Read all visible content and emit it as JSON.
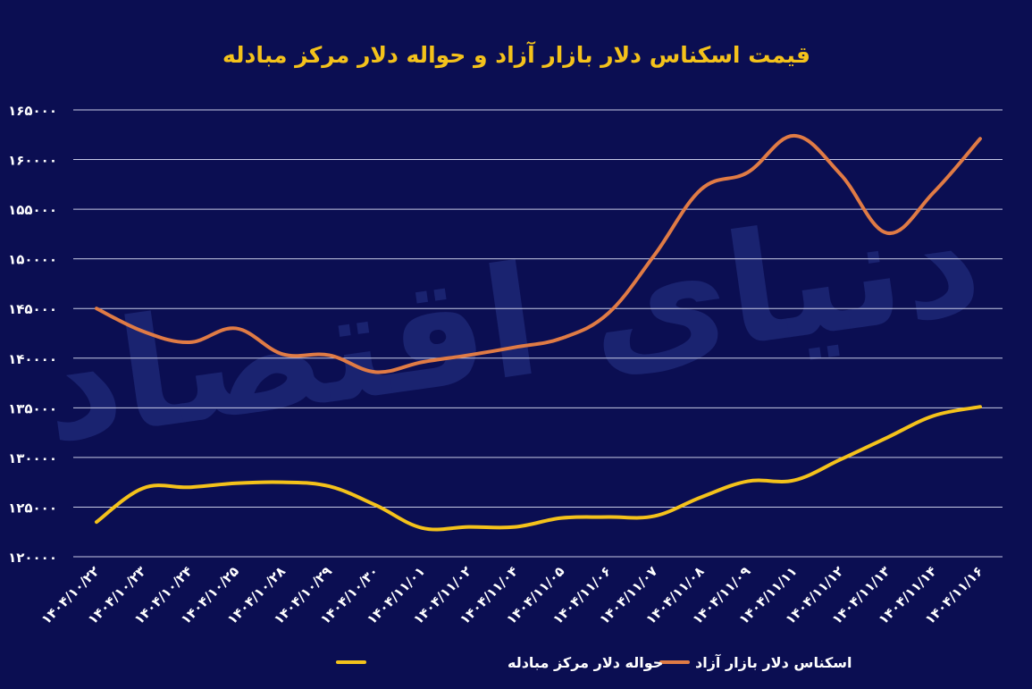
{
  "chart_data": {
    "type": "line",
    "title": "قیمت اسکناس دلار بازار آزاد و حواله دلار مرکز مبادله",
    "watermark": "دنیای اقتصاد",
    "categories": [
      "۱۴۰۴/۱۰/۲۲",
      "۱۴۰۴/۱۰/۲۳",
      "۱۴۰۴/۱۰/۲۴",
      "۱۴۰۴/۱۰/۲۵",
      "۱۴۰۴/۱۰/۲۸",
      "۱۴۰۴/۱۰/۲۹",
      "۱۴۰۴/۱۰/۳۰",
      "۱۴۰۴/۱۱/۰۱",
      "۱۴۰۴/۱۱/۰۲",
      "۱۴۰۴/۱۱/۰۴",
      "۱۴۰۴/۱۱/۰۵",
      "۱۴۰۴/۱۱/۰۶",
      "۱۴۰۴/۱۱/۰۷",
      "۱۴۰۴/۱۱/۰۸",
      "۱۴۰۴/۱۱/۰۹",
      "۱۴۰۴/۱۱/۱۱",
      "۱۴۰۴/۱۱/۱۲",
      "۱۴۰۴/۱۱/۱۳",
      "۱۴۰۴/۱۱/۱۴",
      "۱۴۰۴/۱۱/۱۶"
    ],
    "y_ticks": [
      "۱۲۰۰۰۰",
      "۱۲۵۰۰۰",
      "۱۳۰۰۰۰",
      "۱۳۵۰۰۰",
      "۱۴۰۰۰۰",
      "۱۴۵۰۰۰",
      "۱۵۰۰۰۰",
      "۱۵۵۰۰۰",
      "۱۶۰۰۰۰",
      "۱۶۵۰۰۰"
    ],
    "ylim": [
      120000,
      165000
    ],
    "grid": true,
    "legend_position": "bottom",
    "series": [
      {
        "name": "اسکناس دلار بازار آزاد",
        "color": "#e07b45",
        "values": [
          145000,
          142700,
          141600,
          143000,
          140400,
          140300,
          138600,
          139600,
          140300,
          141100,
          142000,
          144500,
          150400,
          157000,
          158700,
          162400,
          158500,
          152600,
          156700,
          162100
        ]
      },
      {
        "name": "حواله دلار مرکز مبادله",
        "color": "#f4c21b",
        "values": [
          123500,
          126900,
          127000,
          127400,
          127500,
          127100,
          125200,
          122900,
          123000,
          123000,
          123900,
          124000,
          124100,
          126000,
          127600,
          127700,
          129800,
          132000,
          134200,
          135100
        ]
      }
    ]
  },
  "colors": {
    "background": "#0b0e52",
    "grid": "#c8cbe6",
    "title": "#f4c21b",
    "text": "#ffffff",
    "watermark": "#1f2a7a"
  }
}
